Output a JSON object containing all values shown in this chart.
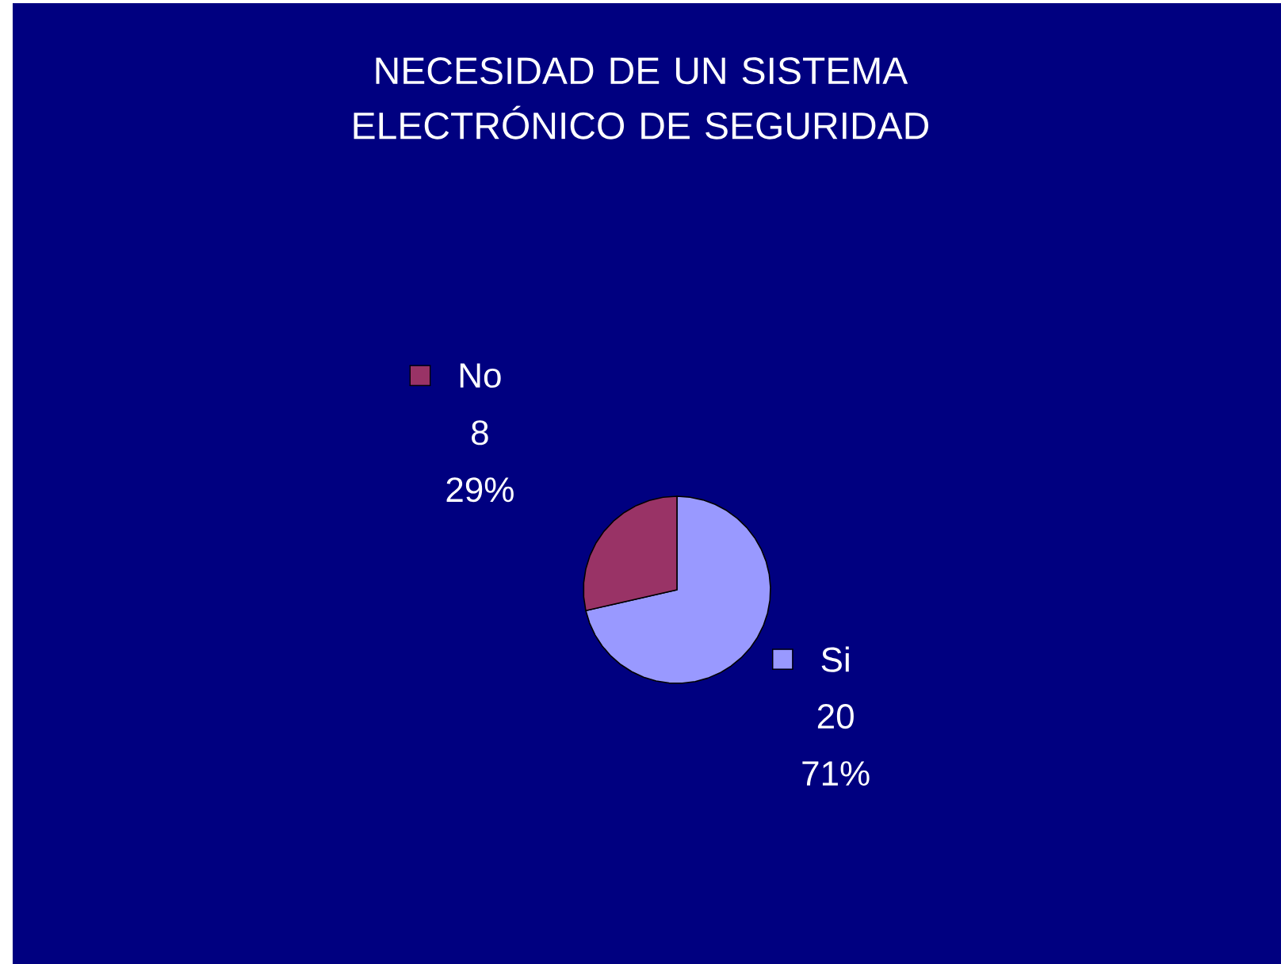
{
  "chart_data": {
    "type": "pie",
    "title": "NECESIDAD DE UN SISTEMA ELECTRÓNICO DE SEGURIDAD",
    "categories": [
      "Si",
      "No"
    ],
    "values": [
      20,
      8
    ],
    "colors": [
      "#9999ff",
      "#993366"
    ],
    "data_labels": true,
    "legend": "top left",
    "annotations": [
      "71%",
      "29%"
    ]
  }
}
